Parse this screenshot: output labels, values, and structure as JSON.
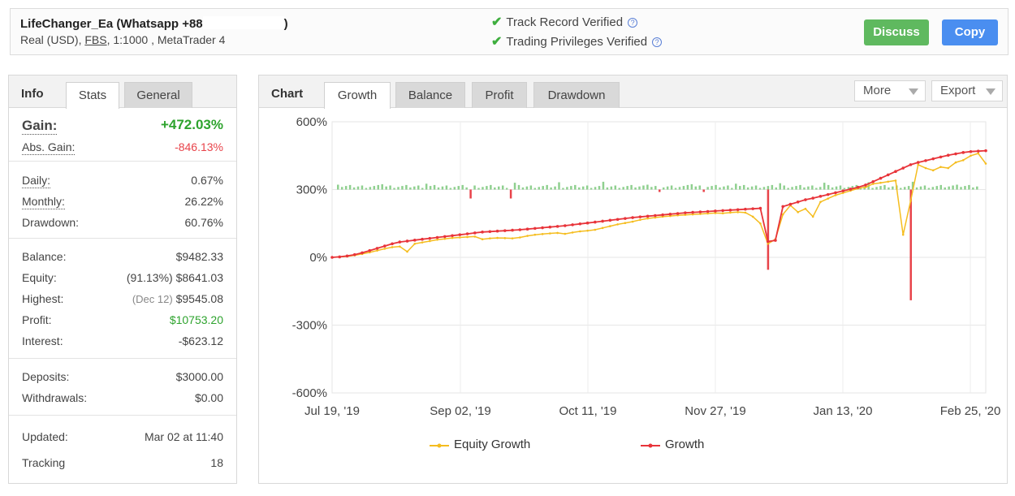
{
  "header": {
    "account_name": "LifeChanger_Ea (Whatsapp +88",
    "account_name_end": ")",
    "account_type": "Real (USD),",
    "broker": "FBS",
    "leverage_platform": ", 1:1000 , MetaTrader 4",
    "track_record": "Track Record Verified",
    "trading_privileges": "Trading Privileges Verified",
    "discuss_label": "Discuss",
    "copy_label": "Copy"
  },
  "left_panel": {
    "title": "Info",
    "tabs": [
      "Stats",
      "General"
    ],
    "gain_label": "Gain:",
    "gain_value": "+472.03%",
    "abs_gain_label": "Abs. Gain:",
    "abs_gain_value": "-846.13%",
    "daily_label": "Daily:",
    "daily_value": "0.67%",
    "monthly_label": "Monthly:",
    "monthly_value": "26.22%",
    "drawdown_label": "Drawdown:",
    "drawdown_value": "60.76%",
    "balance_label": "Balance:",
    "balance_value": "$9482.33",
    "equity_label": "Equity:",
    "equity_pct": "(91.13%)",
    "equity_value": "$8641.03",
    "highest_label": "Highest:",
    "highest_date": "(Dec 12)",
    "highest_value": "$9545.08",
    "profit_label": "Profit:",
    "profit_value": "$10753.20",
    "interest_label": "Interest:",
    "interest_value": "-$623.12",
    "deposits_label": "Deposits:",
    "deposits_value": "$3000.00",
    "withdrawals_label": "Withdrawals:",
    "withdrawals_value": "$0.00",
    "updated_label": "Updated:",
    "updated_value": "Mar 02 at 11:40",
    "tracking_label": "Tracking",
    "tracking_value": "18"
  },
  "chart_panel": {
    "title": "Chart",
    "tabs": [
      "Growth",
      "Balance",
      "Profit",
      "Drawdown"
    ],
    "more_label": "More",
    "export_label": "Export"
  },
  "colors": {
    "growth": "#e8343a",
    "equity_growth": "#f5bd1f",
    "bar_positive": "#8fd08f",
    "bar_negative": "#e8434a",
    "discuss_button": "#5fb95f",
    "copy_button": "#4a8ef0"
  },
  "icons": [
    "check-icon",
    "help-icon",
    "caret-down-icon"
  ],
  "chart_data": {
    "type": "line",
    "x_tick_labels": [
      "Jul 19, '19",
      "Sep 02, '19",
      "Oct 11, '19",
      "Nov 27, '19",
      "Jan 13, '20",
      "Feb 25, '20"
    ],
    "y_tick_labels": [
      "600%",
      "300%",
      "0%",
      "-300%",
      "-600%"
    ],
    "ylim": [
      -600,
      600
    ],
    "grid": true,
    "legend_position": "bottom",
    "series": [
      {
        "name": "Equity Growth",
        "values": [
          0,
          2,
          4,
          9,
          15,
          22,
          30,
          38,
          45,
          48,
          25,
          60,
          66,
          72,
          78,
          82,
          86,
          88,
          90,
          92,
          80,
          84,
          86,
          85,
          84,
          88,
          95,
          100,
          103,
          106,
          108,
          104,
          110,
          115,
          118,
          122,
          130,
          138,
          146,
          152,
          158,
          166,
          172,
          176,
          180,
          183,
          186,
          188,
          190,
          192,
          194,
          196,
          195,
          198,
          200,
          198,
          180,
          150,
          60,
          80,
          190,
          230,
          200,
          215,
          180,
          245,
          260,
          275,
          285,
          295,
          305,
          310,
          325,
          330,
          335,
          340,
          100,
          250,
          410,
          395,
          385,
          400,
          395,
          420,
          430,
          450,
          460,
          415
        ]
      },
      {
        "name": "Growth",
        "values": [
          0,
          2,
          6,
          12,
          20,
          30,
          40,
          50,
          60,
          68,
          72,
          76,
          80,
          84,
          88,
          92,
          96,
          100,
          104,
          108,
          112,
          114,
          116,
          118,
          120,
          122,
          125,
          128,
          131,
          134,
          137,
          140,
          144,
          148,
          152,
          156,
          160,
          164,
          168,
          172,
          176,
          179,
          182,
          185,
          188,
          191,
          194,
          197,
          199,
          201,
          203,
          205,
          207,
          209,
          211,
          213,
          215,
          217,
          70,
          75,
          225,
          235,
          245,
          255,
          262,
          270,
          278,
          286,
          294,
          302,
          310,
          320,
          335,
          350,
          365,
          380,
          395,
          410,
          420,
          428,
          436,
          444,
          452,
          458,
          464,
          468,
          470,
          472
        ]
      }
    ],
    "bars_note": "",
    "spikes": [
      {
        "x_index": 58,
        "value": -55
      },
      {
        "x_index": 77,
        "value": -190
      }
    ]
  }
}
